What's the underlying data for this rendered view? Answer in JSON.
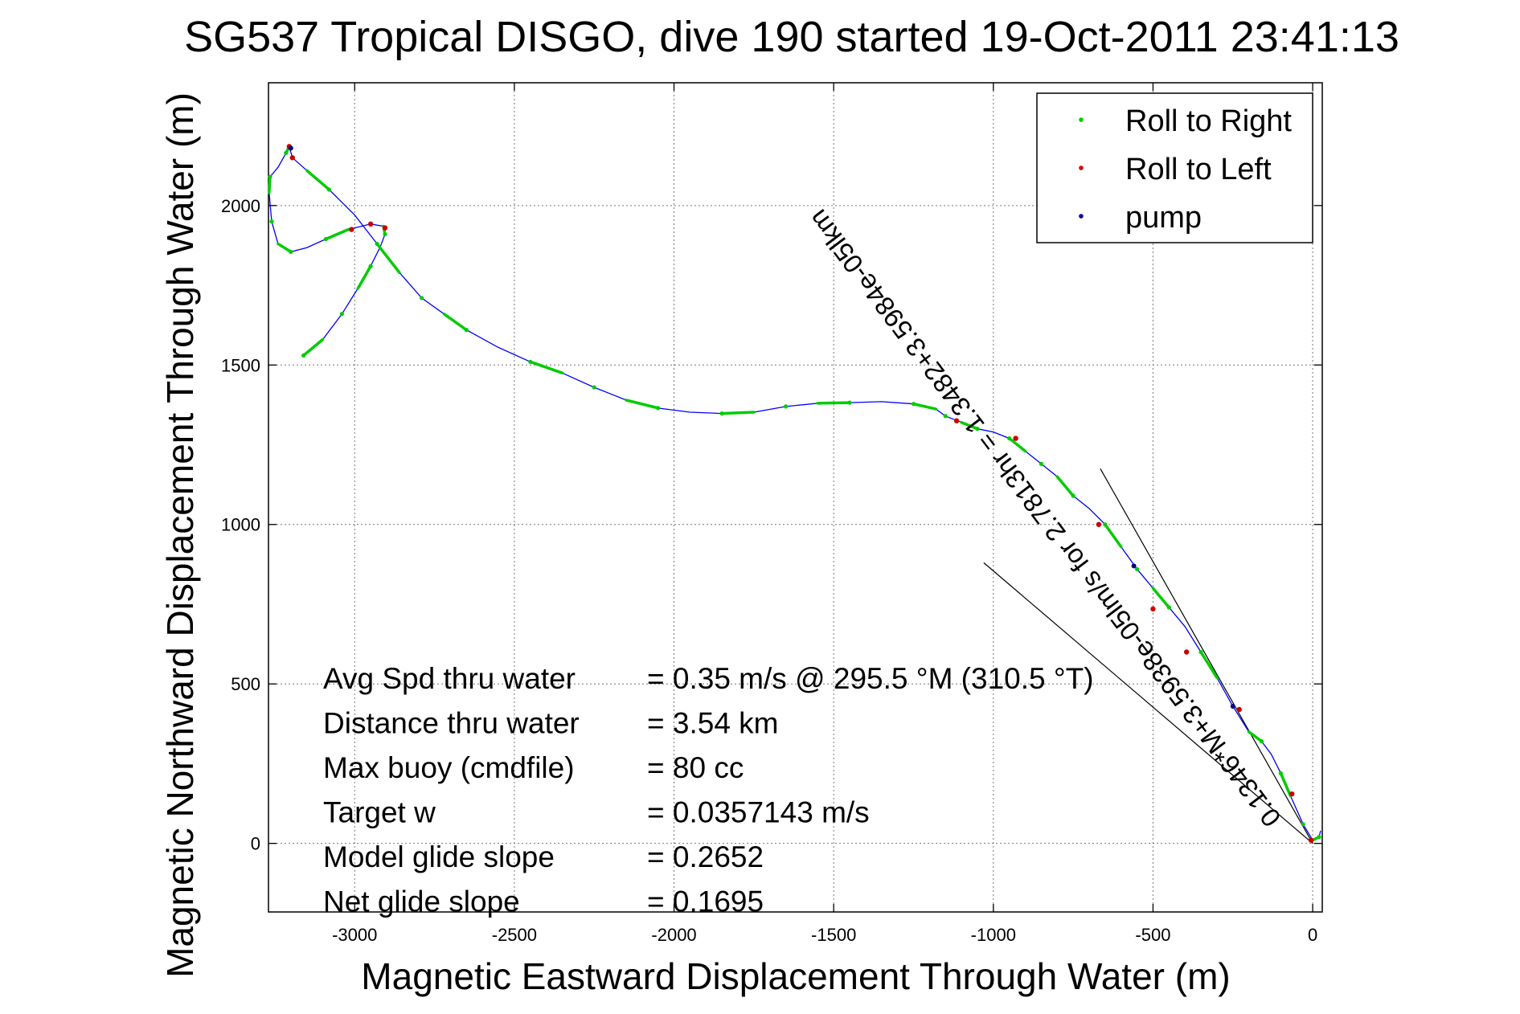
{
  "chart_data": {
    "type": "line",
    "title": "SG537 Tropical DISGO, dive 190 started 19-Oct-2011 23:41:13",
    "xlabel": "Magnetic Eastward Displacement Through Water (m)",
    "ylabel": "Magnetic Northward Displacement Through Water (m)",
    "xlim": [
      -3270,
      30
    ],
    "ylim": [
      -215,
      2385
    ],
    "x_ticks": [
      -3000,
      -2500,
      -2000,
      -1500,
      -1000,
      -500,
      0
    ],
    "x_tick_labels": [
      "-3000",
      "-2500",
      "-2000",
      "-1500",
      "-1000",
      "-500",
      "0"
    ],
    "y_ticks": [
      0,
      500,
      1000,
      1500,
      2000
    ],
    "y_tick_labels": [
      "0",
      "500",
      "1000",
      "1500",
      "2000"
    ],
    "grid": true,
    "legend_position": "top-right",
    "colors": {
      "track": "#0000ff",
      "roll_right": "#00cc00",
      "roll_left": "#cc0000",
      "pump": "#000080",
      "slope_lines": "#000000"
    },
    "legend": [
      {
        "label": "Roll to Right",
        "color": "#00cc00"
      },
      {
        "label": "Roll to Left",
        "color": "#cc0000"
      },
      {
        "label": "pump",
        "color": "#000080"
      }
    ],
    "track": [
      [
        -3160,
        1530
      ],
      [
        -3100,
        1580
      ],
      [
        -3040,
        1660
      ],
      [
        -2990,
        1740
      ],
      [
        -2950,
        1810
      ],
      [
        -2920,
        1870
      ],
      [
        -2905,
        1910
      ],
      [
        -2910,
        1935
      ],
      [
        -2950,
        1942
      ],
      [
        -3020,
        1925
      ],
      [
        -3090,
        1895
      ],
      [
        -3150,
        1868
      ],
      [
        -3200,
        1855
      ],
      [
        -3240,
        1880
      ],
      [
        -3260,
        1950
      ],
      [
        -3268,
        2040
      ],
      [
        -3265,
        2090
      ],
      [
        -3240,
        2120
      ],
      [
        -3215,
        2165
      ],
      [
        -3205,
        2185
      ],
      [
        -3195,
        2150
      ],
      [
        -3150,
        2110
      ],
      [
        -3080,
        2050
      ],
      [
        -3000,
        1970
      ],
      [
        -2930,
        1880
      ],
      [
        -2860,
        1790
      ],
      [
        -2790,
        1710
      ],
      [
        -2720,
        1660
      ],
      [
        -2650,
        1610
      ],
      [
        -2550,
        1555
      ],
      [
        -2450,
        1510
      ],
      [
        -2350,
        1475
      ],
      [
        -2250,
        1430
      ],
      [
        -2150,
        1390
      ],
      [
        -2050,
        1365
      ],
      [
        -1950,
        1352
      ],
      [
        -1850,
        1348
      ],
      [
        -1750,
        1352
      ],
      [
        -1650,
        1370
      ],
      [
        -1550,
        1380
      ],
      [
        -1450,
        1382
      ],
      [
        -1350,
        1385
      ],
      [
        -1250,
        1378
      ],
      [
        -1180,
        1362
      ],
      [
        -1150,
        1340
      ],
      [
        -1100,
        1320
      ],
      [
        -1050,
        1300
      ],
      [
        -1000,
        1290
      ],
      [
        -950,
        1270
      ],
      [
        -900,
        1230
      ],
      [
        -850,
        1190
      ],
      [
        -800,
        1150
      ],
      [
        -750,
        1090
      ],
      [
        -700,
        1050
      ],
      [
        -650,
        1000
      ],
      [
        -600,
        930
      ],
      [
        -550,
        860
      ],
      [
        -500,
        800
      ],
      [
        -450,
        740
      ],
      [
        -400,
        680
      ],
      [
        -350,
        600
      ],
      [
        -300,
        520
      ],
      [
        -250,
        430
      ],
      [
        -200,
        350
      ],
      [
        -160,
        320
      ],
      [
        -130,
        280
      ],
      [
        -100,
        220
      ],
      [
        -70,
        150
      ],
      [
        -30,
        60
      ],
      [
        0,
        10
      ],
      [
        20,
        20
      ],
      [
        25,
        40
      ]
    ],
    "roll_left_points": [
      [
        -3205,
        2185
      ],
      [
        -3195,
        2150
      ],
      [
        -3010,
        1925
      ],
      [
        -2950,
        1942
      ],
      [
        -2905,
        1930
      ],
      [
        -1115,
        1325
      ],
      [
        -930,
        1270
      ],
      [
        -670,
        1000
      ],
      [
        -500,
        735
      ],
      [
        -395,
        600
      ],
      [
        -230,
        420
      ],
      [
        -65,
        155
      ],
      [
        -5,
        10
      ]
    ],
    "pump_points": [
      [
        -3200,
        2180
      ],
      [
        -560,
        870
      ],
      [
        -250,
        430
      ]
    ],
    "slope_lines": [
      [
        [
          -1030,
          880
        ],
        [
          0,
          0
        ]
      ],
      [
        [
          -665,
          1175
        ],
        [
          0,
          0
        ]
      ]
    ],
    "line_annotation": "0.1346*M+3.5938e-05lm/s for 2.7813hr = 1.3482+3.5984e-05lkm",
    "stats": [
      {
        "label": "Avg Spd thru water",
        "value": "=  0.35 m/s @ 295.5 °M (310.5 °T)"
      },
      {
        "label": "Distance thru water",
        "value": "=  3.54 km"
      },
      {
        "label": "Max buoy (cmdfile)",
        "value": "= 80 cc"
      },
      {
        "label": "Target w",
        "value": "= 0.0357143 m/s"
      },
      {
        "label": "Model glide slope",
        "value": "= 0.2652"
      },
      {
        "label": "Net glide slope",
        "value": "= 0.1695"
      }
    ]
  }
}
